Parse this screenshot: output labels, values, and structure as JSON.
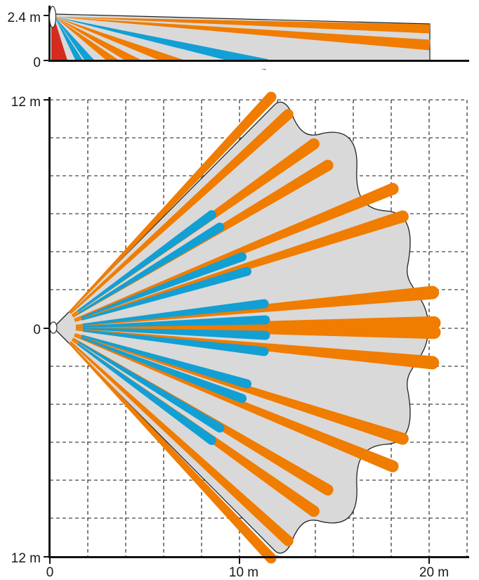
{
  "side_view": {
    "y_top_label": "2.4 m",
    "y_zero_label": "0"
  },
  "top_view": {
    "y_top_label": "12 m",
    "y_mid_label": "0",
    "y_bottom_label": "12 m",
    "x_labels": [
      "0",
      "10 m",
      "20 m"
    ]
  },
  "colors": {
    "coverage_fill": "#d9d9d9",
    "long_range_zone": "#f07c00",
    "short_range_zone": "#129fd4",
    "creep_zone": "#d52b1e",
    "grid": "#1a1a1a",
    "axis": "#111111"
  },
  "icons": {
    "sensor": "sensor-dome-icon"
  }
}
